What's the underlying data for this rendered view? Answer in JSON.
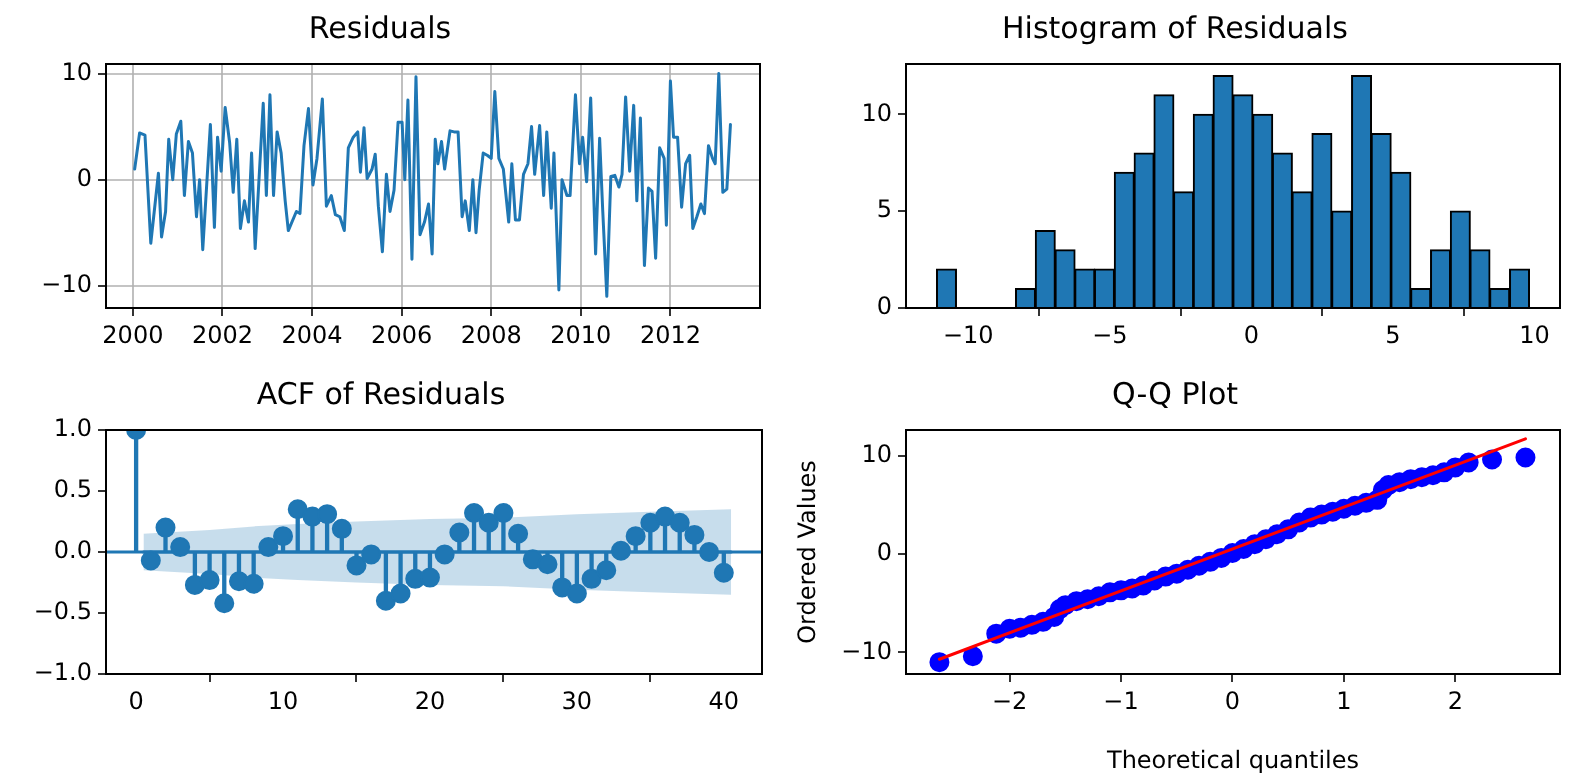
{
  "chart_data": [
    {
      "type": "line",
      "title": "Residuals",
      "color": "#1f77b4",
      "grid": true,
      "x": [
        2000.04,
        2000.15,
        2000.27,
        2000.4,
        2000.57,
        2000.64,
        2000.73,
        2000.8,
        2000.89,
        2000.97,
        2001.07,
        2001.15,
        2001.24,
        2001.33,
        2001.42,
        2001.49,
        2001.56,
        2001.73,
        2001.82,
        2001.89,
        2001.97,
        2002.06,
        2002.16,
        2002.24,
        2002.32,
        2002.4,
        2002.49,
        2002.58,
        2002.65,
        2002.73,
        2002.91,
        2002.98,
        2003.06,
        2003.14,
        2003.22,
        2003.31,
        2003.4,
        2003.47,
        2003.65,
        2003.73,
        2003.82,
        2003.92,
        2004.02,
        2004.11,
        2004.23,
        2004.32,
        2004.43,
        2004.52,
        2004.62,
        2004.72,
        2004.81,
        2004.92,
        2005.02,
        2005.08,
        2005.16,
        2005.23,
        2005.34,
        2005.41,
        2005.48,
        2005.57,
        2005.66,
        2005.74,
        2005.83,
        2005.92,
        2006.01,
        2006.07,
        2006.14,
        2006.23,
        2006.32,
        2006.41,
        2006.51,
        2006.6,
        2006.68,
        2006.75,
        2006.81,
        2006.89,
        2006.96,
        2007.08,
        2007.17,
        2007.26,
        2007.35,
        2007.42,
        2007.51,
        2007.59,
        2007.66,
        2007.73,
        2007.82,
        2007.91,
        2008.0,
        2008.08,
        2008.17,
        2008.27,
        2008.39,
        2008.46,
        2008.54,
        2008.63,
        2008.72,
        2008.82,
        2008.9,
        2008.97,
        2009.08,
        2009.17,
        2009.24,
        2009.34,
        2009.4,
        2009.51,
        2009.58,
        2009.69,
        2009.76,
        2009.88,
        2009.97,
        2010.04,
        2010.13,
        2010.22,
        2010.33,
        2010.42,
        2010.49,
        2010.58,
        2010.67,
        2010.76,
        2010.85,
        2010.92,
        2011.0,
        2011.09,
        2011.18,
        2011.25,
        2011.33,
        2011.42,
        2011.51,
        2011.59,
        2011.67,
        2011.76,
        2011.86,
        2011.91,
        2012.0,
        2012.07,
        2012.16,
        2012.25,
        2012.34,
        2012.43,
        2012.5,
        2012.59,
        2012.68,
        2012.76,
        2012.85,
        2012.94,
        2013.0,
        2013.08,
        2013.17,
        2013.26,
        2013.34
      ],
      "values": [
        1.0,
        4.4,
        4.2,
        -6.0,
        0.6,
        -5.4,
        -3,
        3.8,
        0,
        4.3,
        5.5,
        -1.5,
        3.6,
        2.5,
        -3.5,
        0,
        -6.6,
        5.2,
        -4.5,
        4.0,
        0.8,
        6.8,
        3.5,
        -1.2,
        3.8,
        -4.6,
        -2,
        -4.0,
        2.5,
        -6.5,
        7.2,
        -1.5,
        8.0,
        -1.5,
        4.5,
        2.5,
        -2,
        -4.8,
        -3,
        -3.2,
        3.2,
        6.7,
        -0.5,
        2,
        7.6,
        -2.5,
        -1.5,
        -3.3,
        -3.5,
        -4.8,
        3.0,
        4.0,
        4.5,
        0.7,
        4.9,
        0.1,
        1,
        2.4,
        -2.5,
        -6.8,
        0.5,
        -3.0,
        -1,
        5.4,
        5.4,
        0,
        7.5,
        -7.5,
        9.7,
        -5.2,
        -4,
        -2.3,
        -7.0,
        3.8,
        1.5,
        3.6,
        1.0,
        4.6,
        4.5,
        4.5,
        -3.5,
        -2,
        -4.8,
        0,
        -5,
        -1,
        2.5,
        2.3,
        2,
        8.3,
        2.0,
        1,
        -4,
        1.5,
        -3.8,
        -3.8,
        0.5,
        1.5,
        5.0,
        0.5,
        5.1,
        -1.5,
        4.5,
        -2.7,
        2.5,
        -10.4,
        0,
        -1.5,
        -1.5,
        8.0,
        1.5,
        4.0,
        -0.2,
        7.7,
        -7.0,
        3.9,
        -3,
        -11.0,
        0.3,
        0.4,
        -0.7,
        0.5,
        7.8,
        0.8,
        7.0,
        -2,
        5.8,
        -8.1,
        -0.8,
        -1.1,
        -7.4,
        3.0,
        2.0,
        -4.3,
        9.3,
        4.0,
        4.0,
        -2.6,
        1.5,
        2.3,
        -4.6,
        -3.5,
        -2.3,
        -3.2,
        3.2,
        2.0,
        1.5,
        10,
        -1.2,
        -0.9,
        5.2
      ],
      "xlim": [
        1999.4,
        2014.0
      ],
      "xticks": [
        2000,
        2002,
        2004,
        2006,
        2008,
        2010,
        2012
      ],
      "ylim": [
        -12.1,
        10.9
      ],
      "yticks": [
        {
          "value": -10,
          "label": "−10"
        },
        0,
        10
      ]
    },
    {
      "type": "histogram",
      "title": "Histogram of Residuals",
      "color": "#1f77b4",
      "bins": [
        -11.12,
        -10.42,
        -9.72,
        -9.03,
        -8.33,
        -7.63,
        -6.93,
        -6.23,
        -5.54,
        -4.84,
        -4.14,
        -3.44,
        -2.74,
        -2.05,
        -1.35,
        -0.65,
        0.05,
        0.75,
        1.44,
        2.14,
        2.84,
        3.54,
        4.24,
        4.93,
        5.63,
        6.33,
        7.03,
        7.73,
        8.42,
        9.12,
        9.82
      ],
      "values": [
        2,
        0,
        0,
        0,
        1,
        4,
        3,
        2,
        2,
        7,
        8,
        11,
        6,
        10,
        12,
        11,
        10,
        8,
        6,
        9,
        5,
        12,
        9,
        7,
        1,
        3,
        5,
        3,
        1,
        2
      ],
      "xlim": [
        -12.2,
        10.9
      ],
      "xticks": [
        {
          "value": -10,
          "label": "−10"
        },
        {
          "value": -5,
          "label": "−5"
        },
        0,
        5,
        10
      ],
      "ylim": [
        0,
        12.6
      ],
      "yticks": [
        0,
        5,
        10
      ]
    },
    {
      "type": "lollipop",
      "title": "ACF of Residuals",
      "series": [
        {
          "marker": "circle",
          "color": "#1f77b4",
          "x": [
            0,
            1,
            2,
            3,
            4,
            5,
            6,
            7,
            8,
            9,
            10,
            11,
            12,
            13,
            14,
            15,
            16,
            17,
            18,
            19,
            20,
            21,
            22,
            23,
            24,
            25,
            26,
            27,
            28,
            29,
            30,
            31,
            32,
            33,
            34,
            35,
            36,
            37,
            38,
            39,
            40
          ],
          "values": [
            1.0,
            -0.07,
            0.2,
            0.04,
            -0.27,
            -0.23,
            -0.42,
            -0.24,
            -0.26,
            0.04,
            0.13,
            0.35,
            0.29,
            0.31,
            0.19,
            -0.11,
            -0.02,
            -0.4,
            -0.34,
            -0.22,
            -0.21,
            -0.02,
            0.16,
            0.32,
            0.24,
            0.32,
            0.15,
            -0.06,
            -0.1,
            -0.29,
            -0.34,
            -0.22,
            -0.15,
            0.01,
            0.13,
            0.24,
            0.29,
            0.24,
            0.14,
            0,
            -0.17
          ]
        },
        {
          "type": "line",
          "color": "#1f77b4",
          "x": [
            0.5,
            2,
            5,
            8,
            11,
            15,
            20,
            25,
            30,
            35,
            40.5
          ],
          "values": [
            0,
            0,
            0,
            0,
            0,
            0,
            0,
            0,
            0,
            0,
            0
          ],
          "upper": [
            0.15,
            0.16,
            0.18,
            0.21,
            0.23,
            0.25,
            0.27,
            0.28,
            0.31,
            0.33,
            0.35
          ],
          "lower": [
            -0.15,
            -0.16,
            -0.18,
            -0.21,
            -0.23,
            -0.25,
            -0.27,
            -0.28,
            -0.31,
            -0.33,
            -0.35
          ]
        }
      ],
      "ref_lines": [
        {
          "axis": "y",
          "value": 0,
          "color": "#1f77b4"
        }
      ],
      "xlim": [
        -2.05,
        42.6
      ],
      "xticks": [
        0,
        10,
        20,
        30,
        40
      ],
      "ylim": [
        -1,
        1
      ],
      "yticks": [
        {
          "value": -1,
          "label": "−1.0"
        },
        {
          "value": -0.5,
          "label": "−0.5"
        },
        {
          "value": 0,
          "label": "0.0"
        },
        {
          "value": 0.5,
          "label": "0.5"
        },
        {
          "value": 1,
          "label": "1.0"
        }
      ]
    },
    {
      "type": "scatter",
      "title": "Q-Q Plot",
      "xlabel": "Theoretical quantiles",
      "ylabel": "Ordered Values",
      "series": [
        {
          "marker": "circle",
          "color": "#0000ff",
          "x": [
            -2.63,
            -2.33,
            -2.12,
            -2.0,
            -1.9,
            -1.8,
            -1.7,
            -1.6,
            -1.55,
            -1.5,
            -1.4,
            -1.3,
            -1.2,
            -1.1,
            -1.0,
            -0.9,
            -0.8,
            -0.7,
            -0.6,
            -0.5,
            -0.4,
            -0.3,
            -0.2,
            -0.1,
            0,
            0.1,
            0.2,
            0.3,
            0.4,
            0.5,
            0.6,
            0.7,
            0.8,
            0.9,
            1.0,
            1.1,
            1.2,
            1.3,
            1.35,
            1.4,
            1.5,
            1.6,
            1.7,
            1.8,
            1.9,
            2.0,
            2.12,
            2.33,
            2.63
          ],
          "values": [
            -11.0,
            -10.4,
            -8.1,
            -7.6,
            -7.5,
            -7.2,
            -6.9,
            -6.4,
            -5.6,
            -5.2,
            -4.8,
            -4.6,
            -4.3,
            -3.9,
            -3.7,
            -3.5,
            -3.2,
            -2.7,
            -2.3,
            -2.0,
            -1.6,
            -1.2,
            -0.8,
            -0.4,
            0.1,
            0.5,
            1.0,
            1.5,
            2.0,
            2.5,
            3.2,
            3.7,
            4.0,
            4.3,
            4.6,
            4.9,
            5.2,
            5.5,
            6.5,
            7.0,
            7.3,
            7.6,
            7.8,
            8.0,
            8.3,
            8.8,
            9.3,
            9.6,
            9.8
          ]
        },
        {
          "type": "line",
          "color": "#ff0000",
          "x": [
            -2.63,
            2.63
          ],
          "values": [
            -10.7,
            11.7
          ]
        }
      ],
      "xlim": [
        -2.93,
        2.94
      ],
      "xticks": [
        {
          "value": -2,
          "label": "−2"
        },
        {
          "value": -1,
          "label": "−1"
        },
        0,
        1,
        2
      ],
      "ylim": [
        -12.2,
        12.6
      ],
      "yticks": [
        {
          "value": -10,
          "label": "−10"
        },
        0,
        10
      ]
    }
  ]
}
